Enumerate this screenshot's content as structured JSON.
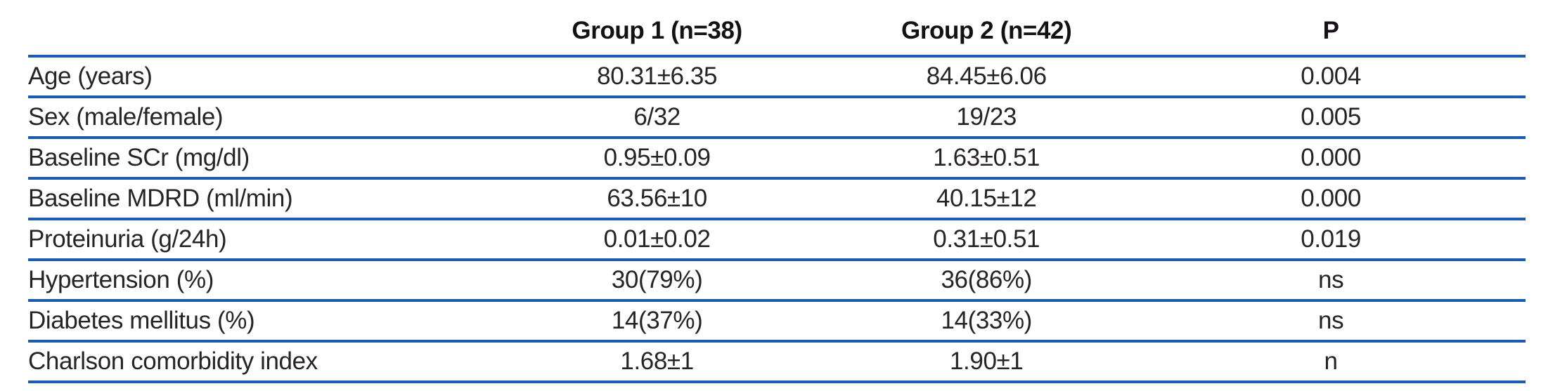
{
  "colors": {
    "rule_blue": "#1d5bae",
    "text": "#272327",
    "header_text": "#141114"
  },
  "table": {
    "columns": {
      "label": "",
      "group1": "Group 1 (n=38)",
      "group2": "Group 2 (n=42)",
      "p": "P"
    },
    "rows": [
      {
        "label": "Age (years)",
        "group1": "80.31±6.35",
        "group2": "84.45±6.06",
        "p": "0.004"
      },
      {
        "label": "Sex (male/female)",
        "group1": "6/32",
        "group2": "19/23",
        "p": "0.005"
      },
      {
        "label": "Baseline SCr (mg/dl)",
        "group1": "0.95±0.09",
        "group2": "1.63±0.51",
        "p": "0.000"
      },
      {
        "label": "Baseline MDRD (ml/min)",
        "group1": "63.56±10",
        "group2": "40.15±12",
        "p": "0.000"
      },
      {
        "label": "Proteinuria (g/24h)",
        "group1": "0.01±0.02",
        "group2": "0.31±0.51",
        "p": "0.019"
      },
      {
        "label": "Hypertension (%)",
        "group1": "30(79%)",
        "group2": "36(86%)",
        "p": "ns"
      },
      {
        "label": "Diabetes mellitus (%)",
        "group1": "14(37%)",
        "group2": "14(33%)",
        "p": "ns"
      },
      {
        "label": "Charlson comorbidity index",
        "group1": "1.68±1",
        "group2": "1.90±1",
        "p": "n"
      }
    ]
  }
}
